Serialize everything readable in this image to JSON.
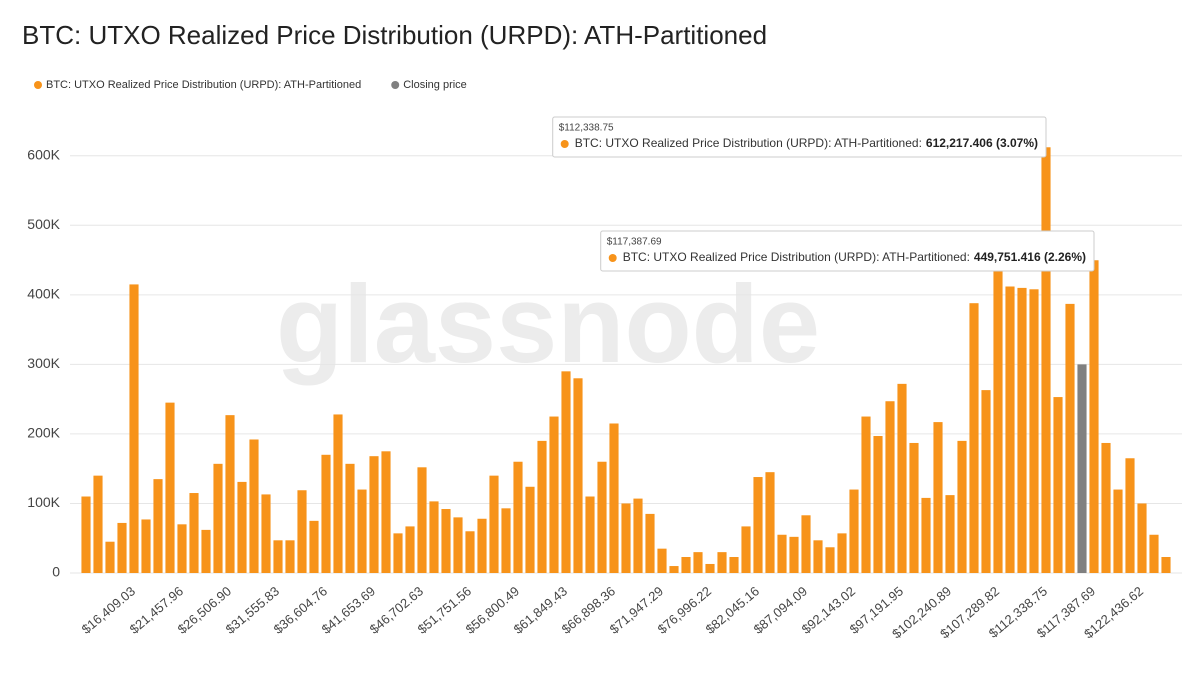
{
  "chart_data": {
    "type": "bar",
    "title": "BTC: UTXO Realized Price Distribution (URPD): ATH-Partitioned",
    "watermark": "glassnode",
    "categories": [
      null,
      null,
      null,
      null,
      "$16,409.03",
      null,
      null,
      null,
      "$21,457.96",
      null,
      null,
      null,
      "$26,506.90",
      null,
      null,
      null,
      "$31,555.83",
      null,
      null,
      null,
      "$36,604.76",
      null,
      null,
      null,
      "$41,653.69",
      null,
      null,
      null,
      "$46,702.63",
      null,
      null,
      null,
      "$51,751.56",
      null,
      null,
      null,
      "$56,800.49",
      null,
      null,
      null,
      "$61,849.43",
      null,
      null,
      null,
      "$66,898.36",
      null,
      null,
      null,
      "$71,947.29",
      null,
      null,
      null,
      "$76,996.22",
      null,
      null,
      null,
      "$82,045.16",
      null,
      null,
      null,
      "$87,094.09",
      null,
      null,
      null,
      "$92,143.02",
      null,
      null,
      null,
      "$97,191.95",
      null,
      null,
      null,
      "$102,240.89",
      null,
      null,
      null,
      "$107,289.82",
      null,
      null,
      null,
      "$112,338.75",
      null,
      null,
      null,
      "$117,387.69",
      null,
      null,
      null,
      "$122,436.62",
      null,
      null
    ],
    "series": [
      {
        "name": "BTC: UTXO Realized Price Distribution (URPD): ATH-Partitioned",
        "color": "#f7931a",
        "values": [
          110000,
          140000,
          45000,
          72000,
          415000,
          77000,
          135000,
          245000,
          70000,
          115000,
          62000,
          157000,
          227000,
          131000,
          192000,
          113000,
          47000,
          47000,
          119000,
          75000,
          170000,
          228000,
          157000,
          120000,
          168000,
          175000,
          57000,
          67000,
          152000,
          103000,
          92000,
          80000,
          60000,
          78000,
          140000,
          93000,
          160000,
          124000,
          190000,
          225000,
          290000,
          280000,
          110000,
          160000,
          215000,
          100000,
          107000,
          85000,
          35000,
          10000,
          23000,
          30000,
          13000,
          30000,
          23000,
          67000,
          138000,
          145000,
          55000,
          52000,
          83000,
          47000,
          37000,
          57000,
          120000,
          225000,
          197000,
          247000,
          272000,
          187000,
          108000,
          217000,
          112000,
          190000,
          388000,
          263000,
          440000,
          412000,
          410000,
          408000,
          612217.406,
          253000,
          387000,
          null,
          449751.416,
          187000,
          120000,
          165000,
          100000,
          55000,
          23000
        ],
        "value_labels": [
          null,
          null,
          null,
          null,
          null,
          null,
          null,
          null,
          null,
          null,
          null,
          null,
          null,
          null,
          null,
          null,
          null,
          null,
          null,
          null,
          null,
          null,
          null,
          null,
          null,
          null,
          null,
          null,
          null,
          null,
          null,
          null,
          null,
          null,
          null,
          null,
          null,
          null,
          null,
          null,
          null,
          null,
          null,
          null,
          null,
          null,
          null,
          null,
          null,
          null,
          null,
          null,
          null,
          null,
          null,
          null,
          null,
          null,
          null,
          null,
          null,
          null,
          null,
          null,
          null,
          null,
          null,
          null,
          null,
          null,
          null,
          null,
          null,
          null,
          null,
          null,
          null,
          null,
          null,
          null,
          "612,217.406 (3.07%)",
          null,
          null,
          null,
          "449,751.416 (2.26%)",
          null,
          null,
          null,
          null,
          null,
          null
        ]
      },
      {
        "name": "Closing price",
        "color": "#808080",
        "values": [
          null,
          null,
          null,
          null,
          null,
          null,
          null,
          null,
          null,
          null,
          null,
          null,
          null,
          null,
          null,
          null,
          null,
          null,
          null,
          null,
          null,
          null,
          null,
          null,
          null,
          null,
          null,
          null,
          null,
          null,
          null,
          null,
          null,
          null,
          null,
          null,
          null,
          null,
          null,
          null,
          null,
          null,
          null,
          null,
          null,
          null,
          null,
          null,
          null,
          null,
          null,
          null,
          null,
          null,
          null,
          null,
          null,
          null,
          null,
          null,
          null,
          null,
          null,
          null,
          null,
          null,
          null,
          null,
          null,
          null,
          null,
          null,
          null,
          null,
          null,
          null,
          null,
          null,
          null,
          null,
          null,
          null,
          null,
          300000,
          null,
          null,
          null,
          null,
          null,
          null,
          null
        ]
      }
    ],
    "tooltips": [
      {
        "index": 80,
        "category_label": "$112,338.75",
        "series_label": "BTC: UTXO Realized Price Distribution (URPD): ATH-Partitioned:"
      },
      {
        "index": 84,
        "category_label": "$117,387.69",
        "series_label": "BTC: UTXO Realized Price Distribution (URPD): ATH-Partitioned:"
      }
    ],
    "ylim": [
      0,
      650000
    ],
    "yticks": [
      0,
      {
        "value": 100000,
        "label": "100K"
      },
      {
        "value": 200000,
        "label": "200K"
      },
      {
        "value": 300000,
        "label": "300K"
      },
      {
        "value": 400000,
        "label": "400K"
      },
      {
        "value": 500000,
        "label": "500K"
      },
      {
        "value": 600000,
        "label": "600K"
      }
    ],
    "grid": true
  }
}
